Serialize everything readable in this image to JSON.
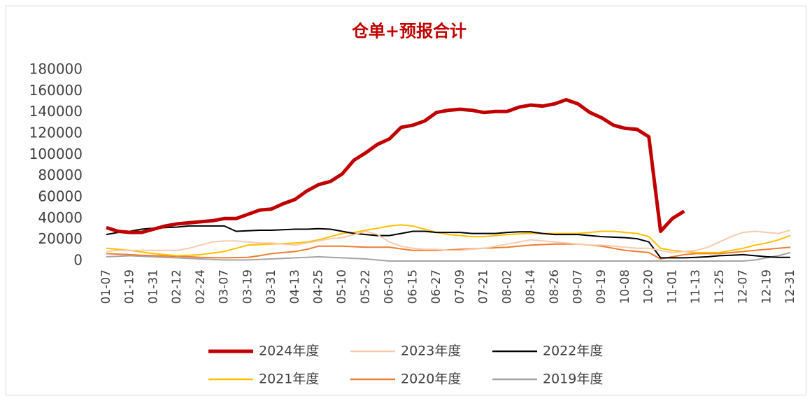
{
  "chart_data": {
    "type": "line",
    "title": "仓单+预报合计",
    "categories": [
      "01-07",
      null,
      "01-19",
      null,
      "01-31",
      null,
      "02-12",
      null,
      "02-24",
      null,
      "03-07",
      null,
      "03-19",
      null,
      "03-31",
      null,
      "04-13",
      null,
      "04-25",
      null,
      "05-10",
      null,
      "05-22",
      null,
      "06-03",
      null,
      "06-15",
      null,
      "06-27",
      null,
      "07-09",
      null,
      "07-21",
      null,
      "08-02",
      null,
      "08-14",
      null,
      "08-26",
      null,
      "09-07",
      null,
      "09-19",
      null,
      "10-08",
      null,
      "10-20",
      null,
      "11-01",
      null,
      "11-13",
      null,
      "11-25",
      null,
      "12-07",
      null,
      "12-19",
      null,
      "12-31"
    ],
    "ylim": [
      0,
      180000
    ],
    "yticks": [
      0,
      20000,
      40000,
      60000,
      80000,
      100000,
      120000,
      140000,
      160000,
      180000
    ],
    "series": [
      {
        "name": "2024年度",
        "color": "#c00000",
        "values": [
          31500,
          28000,
          27000,
          27000,
          30000,
          33000,
          35000,
          36000,
          37000,
          38000,
          40000,
          40000,
          44000,
          48000,
          49000,
          54000,
          58000,
          66000,
          72000,
          75000,
          82000,
          95000,
          102000,
          110000,
          115000,
          126000,
          128000,
          132000,
          140000,
          142000,
          143000,
          142000,
          140000,
          141000,
          141000,
          145000,
          147000,
          146000,
          148000,
          152000,
          148000,
          140000,
          135000,
          128000,
          125000,
          124000,
          117000,
          28000,
          40000,
          47000,
          null,
          null,
          null,
          null,
          null,
          null,
          null,
          null,
          null
        ]
      },
      {
        "name": "2023年度",
        "color": "#f8cbad",
        "values": [
          9000,
          10000,
          10000,
          10000,
          10000,
          10000,
          10000,
          12000,
          15000,
          18000,
          19000,
          19000,
          18000,
          17000,
          17000,
          16000,
          15000,
          17000,
          19000,
          21000,
          22000,
          25000,
          28000,
          25000,
          18000,
          14000,
          12000,
          11000,
          11000,
          10000,
          10000,
          11000,
          12000,
          14000,
          16000,
          18000,
          20000,
          19000,
          18000,
          17000,
          16000,
          15000,
          15000,
          14000,
          13000,
          12000,
          12000,
          10000,
          8000,
          9000,
          10000,
          13000,
          18000,
          23000,
          27000,
          28000,
          27000,
          26000,
          29000
        ]
      },
      {
        "name": "2022年度",
        "color": "#000000",
        "values": [
          25000,
          27000,
          28000,
          30000,
          31000,
          31500,
          32000,
          33000,
          33000,
          33000,
          33000,
          28000,
          28500,
          29000,
          29000,
          29500,
          30000,
          30000,
          30500,
          30000,
          28000,
          26000,
          25000,
          24000,
          24000,
          26000,
          28000,
          28000,
          27000,
          27000,
          27000,
          26000,
          26000,
          26000,
          27000,
          27500,
          27500,
          26000,
          25000,
          25000,
          25000,
          24000,
          23000,
          22500,
          22000,
          21000,
          18000,
          3000,
          3000,
          3000,
          3500,
          4000,
          5000,
          5500,
          6000,
          5000,
          4000,
          3500,
          3500
        ]
      },
      {
        "name": "2021年度",
        "color": "#ffc000",
        "values": [
          12000,
          11000,
          10000,
          8500,
          7000,
          6000,
          5000,
          5500,
          6000,
          7500,
          9000,
          12000,
          15000,
          15500,
          16000,
          16500,
          17000,
          18000,
          20000,
          23000,
          26000,
          27000,
          29000,
          31000,
          33000,
          34000,
          33000,
          30000,
          27000,
          25000,
          24000,
          23000,
          23000,
          24000,
          25000,
          25500,
          26000,
          26000,
          26000,
          26000,
          26000,
          27000,
          28000,
          28000,
          27000,
          26000,
          23000,
          12000,
          10000,
          9000,
          8000,
          8000,
          8000,
          10000,
          12000,
          15000,
          17000,
          20000,
          24000
        ]
      },
      {
        "name": "2020年度",
        "color": "#ed7d31",
        "values": [
          7000,
          6500,
          6000,
          5500,
          5000,
          4800,
          4500,
          4000,
          3500,
          3200,
          3000,
          3200,
          3500,
          5000,
          7000,
          8000,
          9000,
          11000,
          14000,
          14000,
          14000,
          13500,
          13000,
          13000,
          13000,
          11500,
          10000,
          10000,
          10000,
          10500,
          11000,
          11500,
          12000,
          12500,
          13000,
          14000,
          15000,
          15500,
          16000,
          16000,
          16000,
          15000,
          14000,
          12000,
          10000,
          9000,
          8000,
          2000,
          4000,
          6000,
          7000,
          7000,
          7000,
          8000,
          9000,
          10000,
          11000,
          12000,
          13000
        ]
      },
      {
        "name": "2019年度",
        "color": "#a5a5a5",
        "values": [
          4000,
          4500,
          5000,
          4500,
          4000,
          3500,
          3000,
          2500,
          2000,
          1500,
          1000,
          1000,
          1000,
          1500,
          2000,
          2500,
          3000,
          3500,
          4000,
          3500,
          3000,
          2500,
          2000,
          1000,
          0,
          0,
          0,
          0,
          0,
          0,
          0,
          0,
          0,
          0,
          0,
          0,
          0,
          0,
          0,
          0,
          0,
          0,
          0,
          0,
          0,
          0,
          0,
          0,
          0,
          0,
          0,
          0,
          0,
          0,
          0,
          1000,
          3000,
          5000,
          8000
        ]
      }
    ]
  }
}
